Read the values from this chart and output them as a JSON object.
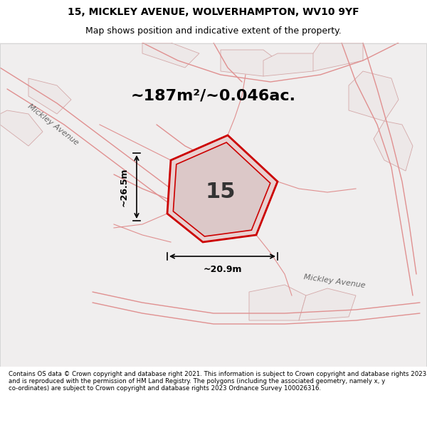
{
  "title_line1": "15, MICKLEY AVENUE, WOLVERHAMPTON, WV10 9YF",
  "title_line2": "Map shows position and indicative extent of the property.",
  "area_text": "~187m²/~0.046ac.",
  "number_text": "15",
  "dim_width": "~20.9m",
  "dim_height": "~26.5m",
  "road_label1": "Mickley Avenue",
  "road_label2": "Mickley Avenue",
  "footer_text": "Contains OS data © Crown copyright and database right 2021. This information is subject to Crown copyright and database rights 2023 and is reproduced with the permission of HM Land Registry. The polygons (including the associated geometry, namely x, y co-ordinates) are subject to Crown copyright and database rights 2023 Ordnance Survey 100026316.",
  "bg_color": "#f5f5f5",
  "map_bg": "#f0eeee",
  "road_color": "#e8b8b8",
  "highlight_color": "#e8c8c8",
  "plot_outline_color": "#cc0000",
  "dim_color": "#000000",
  "title_bg": "#ffffff",
  "footer_bg": "#ffffff"
}
